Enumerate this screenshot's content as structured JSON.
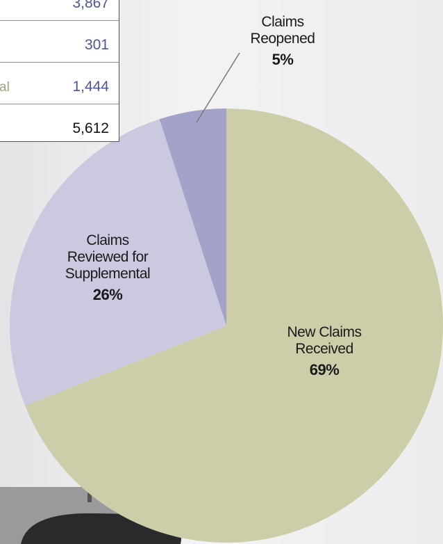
{
  "chart_data": {
    "type": "pie",
    "categories": [
      "New Claims Received",
      "Claims Reviewed for Supplemental",
      "Claims Reopened"
    ],
    "values": [
      69,
      26,
      5
    ],
    "value_labels": [
      "69%",
      "26%",
      "5%"
    ],
    "colors": [
      "#cdcea9",
      "#cac9df",
      "#a3a2c9"
    ]
  },
  "table": {
    "rows": [
      {
        "value": "3,867"
      },
      {
        "value": "301"
      },
      {
        "label": "al",
        "value": "1,444"
      },
      {
        "value": "5,612"
      }
    ]
  }
}
